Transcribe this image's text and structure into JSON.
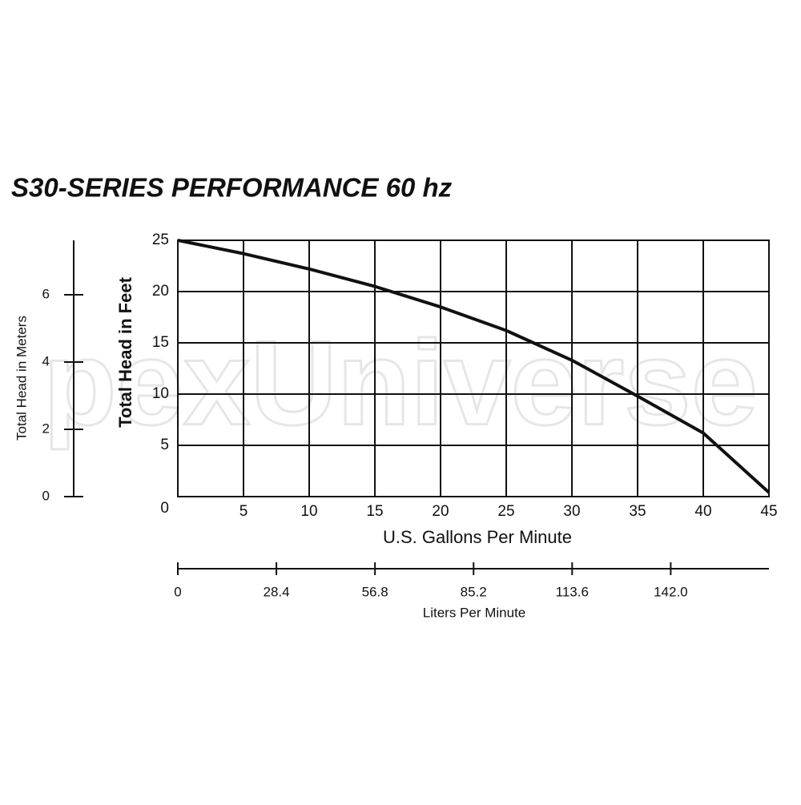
{
  "chart_data": {
    "type": "line",
    "title": "S30-SERIES PERFORMANCE 60 hz",
    "watermark": "pexUniverse",
    "x_label": "U.S. Gallons Per Minute",
    "y_label": "Total Head in Feet",
    "y2_label": "Total Head in Meters",
    "x2_label": "Liters Per Minute",
    "x": [
      0,
      5,
      10,
      15,
      20,
      25,
      30,
      35,
      40,
      45
    ],
    "series": [
      {
        "color": "#111111",
        "values": [
          25,
          23.7,
          22.2,
          20.5,
          18.5,
          16.2,
          13.3,
          9.8,
          6.2,
          0.4
        ]
      }
    ],
    "xlim": [
      0,
      45
    ],
    "xticks": [
      5,
      10,
      15,
      20,
      25,
      30,
      35,
      40,
      45
    ],
    "ylim": [
      0,
      25
    ],
    "yticks": [
      0,
      5,
      10,
      15,
      20,
      25
    ],
    "y2lim": [
      0,
      7.62
    ],
    "y2ticks": [
      0,
      2,
      4,
      6
    ],
    "x2lim": [
      0,
      170.3
    ],
    "x2ticks": [
      0,
      28.4,
      56.8,
      85.2,
      113.6,
      {
        "value": 142,
        "label": "142.0"
      }
    ],
    "grid": true
  }
}
